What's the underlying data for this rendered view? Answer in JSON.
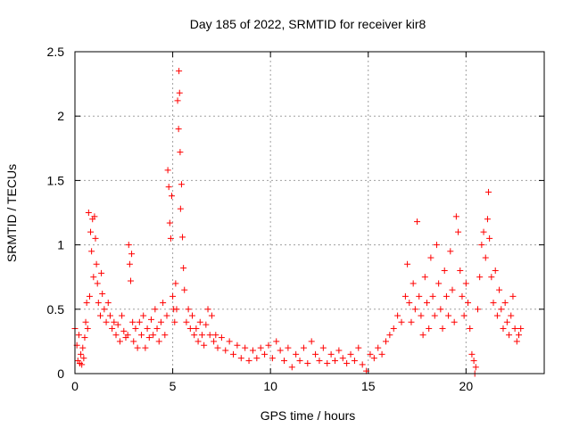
{
  "chart_data": {
    "type": "scatter",
    "title": "Day 185 of 2022, SRMTID for receiver kir8",
    "xlabel": "GPS time / hours",
    "ylabel": "SRMTID / TECUs",
    "xlim": [
      0,
      24
    ],
    "ylim": [
      0,
      2.5
    ],
    "xticks": [
      0,
      5,
      10,
      15,
      20
    ],
    "xtick_labels": [
      "0",
      "5",
      "10",
      "15",
      "20"
    ],
    "yticks": [
      0,
      0.5,
      1,
      1.5,
      2,
      2.5
    ],
    "ytick_labels": [
      "0",
      "0.5",
      "1",
      "1.5",
      "2",
      "2.5"
    ],
    "grid": true,
    "marker": "+",
    "color": "#ff0000",
    "series": [
      {
        "name": "SRMTID",
        "points": [
          [
            0.0,
            0.35
          ],
          [
            0.1,
            0.22
          ],
          [
            0.15,
            0.1
          ],
          [
            0.2,
            0.3
          ],
          [
            0.25,
            0.08
          ],
          [
            0.3,
            0.15
          ],
          [
            0.35,
            0.07
          ],
          [
            0.4,
            0.2
          ],
          [
            0.45,
            0.12
          ],
          [
            0.5,
            0.28
          ],
          [
            0.55,
            0.4
          ],
          [
            0.6,
            0.55
          ],
          [
            0.65,
            0.35
          ],
          [
            0.7,
            1.25
          ],
          [
            0.75,
            0.6
          ],
          [
            0.8,
            1.1
          ],
          [
            0.85,
            0.95
          ],
          [
            0.9,
            1.2
          ],
          [
            0.95,
            0.75
          ],
          [
            1.0,
            1.22
          ],
          [
            1.05,
            1.05
          ],
          [
            1.1,
            0.85
          ],
          [
            1.15,
            0.7
          ],
          [
            1.2,
            0.55
          ],
          [
            1.3,
            0.45
          ],
          [
            1.35,
            0.78
          ],
          [
            1.4,
            0.62
          ],
          [
            1.5,
            0.5
          ],
          [
            1.6,
            0.4
          ],
          [
            1.7,
            0.55
          ],
          [
            1.8,
            0.45
          ],
          [
            1.9,
            0.35
          ],
          [
            2.0,
            0.4
          ],
          [
            2.1,
            0.3
          ],
          [
            2.2,
            0.38
          ],
          [
            2.3,
            0.25
          ],
          [
            2.4,
            0.45
          ],
          [
            2.5,
            0.33
          ],
          [
            2.6,
            0.28
          ],
          [
            2.7,
            0.3
          ],
          [
            2.75,
            1.0
          ],
          [
            2.8,
            0.85
          ],
          [
            2.85,
            0.72
          ],
          [
            2.9,
            0.93
          ],
          [
            2.95,
            0.4
          ],
          [
            3.0,
            0.25
          ],
          [
            3.1,
            0.35
          ],
          [
            3.2,
            0.2
          ],
          [
            3.3,
            0.4
          ],
          [
            3.4,
            0.3
          ],
          [
            3.5,
            0.45
          ],
          [
            3.6,
            0.2
          ],
          [
            3.7,
            0.35
          ],
          [
            3.8,
            0.28
          ],
          [
            3.9,
            0.42
          ],
          [
            4.0,
            0.3
          ],
          [
            4.1,
            0.5
          ],
          [
            4.2,
            0.35
          ],
          [
            4.3,
            0.25
          ],
          [
            4.4,
            0.4
          ],
          [
            4.5,
            0.55
          ],
          [
            4.6,
            0.3
          ],
          [
            4.7,
            0.45
          ],
          [
            4.75,
            1.58
          ],
          [
            4.8,
            1.45
          ],
          [
            4.85,
            1.17
          ],
          [
            4.9,
            1.05
          ],
          [
            4.95,
            1.38
          ],
          [
            5.0,
            0.6
          ],
          [
            5.05,
            0.5
          ],
          [
            5.1,
            0.4
          ],
          [
            5.15,
            0.7
          ],
          [
            5.2,
            0.5
          ],
          [
            5.25,
            2.12
          ],
          [
            5.3,
            1.9
          ],
          [
            5.32,
            2.35
          ],
          [
            5.35,
            2.18
          ],
          [
            5.38,
            1.72
          ],
          [
            5.4,
            1.28
          ],
          [
            5.45,
            1.47
          ],
          [
            5.5,
            1.06
          ],
          [
            5.55,
            0.82
          ],
          [
            5.6,
            0.65
          ],
          [
            5.7,
            0.4
          ],
          [
            5.8,
            0.5
          ],
          [
            5.9,
            0.35
          ],
          [
            6.0,
            0.45
          ],
          [
            6.1,
            0.3
          ],
          [
            6.2,
            0.35
          ],
          [
            6.3,
            0.25
          ],
          [
            6.4,
            0.4
          ],
          [
            6.5,
            0.3
          ],
          [
            6.6,
            0.22
          ],
          [
            6.7,
            0.38
          ],
          [
            6.8,
            0.5
          ],
          [
            6.9,
            0.3
          ],
          [
            7.0,
            0.45
          ],
          [
            7.1,
            0.25
          ],
          [
            7.2,
            0.3
          ],
          [
            7.3,
            0.2
          ],
          [
            7.5,
            0.28
          ],
          [
            7.7,
            0.18
          ],
          [
            7.9,
            0.25
          ],
          [
            8.1,
            0.15
          ],
          [
            8.3,
            0.22
          ],
          [
            8.5,
            0.12
          ],
          [
            8.7,
            0.2
          ],
          [
            8.9,
            0.1
          ],
          [
            9.1,
            0.18
          ],
          [
            9.3,
            0.12
          ],
          [
            9.5,
            0.2
          ],
          [
            9.7,
            0.15
          ],
          [
            9.9,
            0.22
          ],
          [
            10.1,
            0.12
          ],
          [
            10.3,
            0.25
          ],
          [
            10.5,
            0.18
          ],
          [
            10.7,
            0.1
          ],
          [
            10.9,
            0.2
          ],
          [
            11.1,
            0.05
          ],
          [
            11.3,
            0.15
          ],
          [
            11.5,
            0.1
          ],
          [
            11.7,
            0.2
          ],
          [
            11.9,
            0.08
          ],
          [
            12.1,
            0.25
          ],
          [
            12.3,
            0.15
          ],
          [
            12.5,
            0.1
          ],
          [
            12.7,
            0.2
          ],
          [
            12.9,
            0.08
          ],
          [
            13.1,
            0.15
          ],
          [
            13.3,
            0.1
          ],
          [
            13.5,
            0.18
          ],
          [
            13.7,
            0.12
          ],
          [
            13.9,
            0.08
          ],
          [
            14.1,
            0.15
          ],
          [
            14.3,
            0.1
          ],
          [
            14.5,
            0.2
          ],
          [
            14.7,
            0.07
          ],
          [
            14.9,
            0.02
          ],
          [
            15.1,
            0.15
          ],
          [
            15.3,
            0.12
          ],
          [
            15.5,
            0.2
          ],
          [
            15.7,
            0.15
          ],
          [
            15.9,
            0.25
          ],
          [
            16.1,
            0.3
          ],
          [
            16.3,
            0.35
          ],
          [
            16.5,
            0.45
          ],
          [
            16.7,
            0.4
          ],
          [
            16.9,
            0.6
          ],
          [
            17.0,
            0.85
          ],
          [
            17.1,
            0.55
          ],
          [
            17.2,
            0.4
          ],
          [
            17.3,
            0.7
          ],
          [
            17.4,
            0.5
          ],
          [
            17.5,
            1.18
          ],
          [
            17.6,
            0.6
          ],
          [
            17.7,
            0.45
          ],
          [
            17.8,
            0.3
          ],
          [
            17.9,
            0.75
          ],
          [
            18.0,
            0.55
          ],
          [
            18.1,
            0.35
          ],
          [
            18.2,
            0.9
          ],
          [
            18.3,
            0.6
          ],
          [
            18.4,
            0.45
          ],
          [
            18.5,
            1.0
          ],
          [
            18.6,
            0.7
          ],
          [
            18.7,
            0.5
          ],
          [
            18.8,
            0.35
          ],
          [
            18.9,
            0.8
          ],
          [
            19.0,
            0.6
          ],
          [
            19.1,
            0.45
          ],
          [
            19.2,
            0.95
          ],
          [
            19.3,
            0.65
          ],
          [
            19.4,
            0.4
          ],
          [
            19.5,
            1.22
          ],
          [
            19.6,
            1.1
          ],
          [
            19.7,
            0.8
          ],
          [
            19.8,
            0.6
          ],
          [
            19.9,
            0.45
          ],
          [
            20.0,
            0.7
          ],
          [
            20.1,
            0.55
          ],
          [
            20.2,
            0.35
          ],
          [
            20.3,
            0.15
          ],
          [
            20.4,
            0.1
          ],
          [
            20.45,
            0.0
          ],
          [
            20.5,
            0.05
          ],
          [
            20.6,
            0.5
          ],
          [
            20.7,
            0.75
          ],
          [
            20.8,
            1.0
          ],
          [
            20.9,
            1.1
          ],
          [
            21.0,
            0.9
          ],
          [
            21.1,
            1.2
          ],
          [
            21.15,
            1.41
          ],
          [
            21.2,
            1.05
          ],
          [
            21.3,
            0.75
          ],
          [
            21.4,
            0.55
          ],
          [
            21.5,
            0.8
          ],
          [
            21.6,
            0.45
          ],
          [
            21.7,
            0.65
          ],
          [
            21.8,
            0.5
          ],
          [
            21.9,
            0.35
          ],
          [
            22.0,
            0.55
          ],
          [
            22.1,
            0.4
          ],
          [
            22.2,
            0.3
          ],
          [
            22.3,
            0.45
          ],
          [
            22.4,
            0.6
          ],
          [
            22.5,
            0.35
          ],
          [
            22.6,
            0.25
          ],
          [
            22.7,
            0.3
          ],
          [
            22.8,
            0.35
          ]
        ]
      }
    ]
  }
}
